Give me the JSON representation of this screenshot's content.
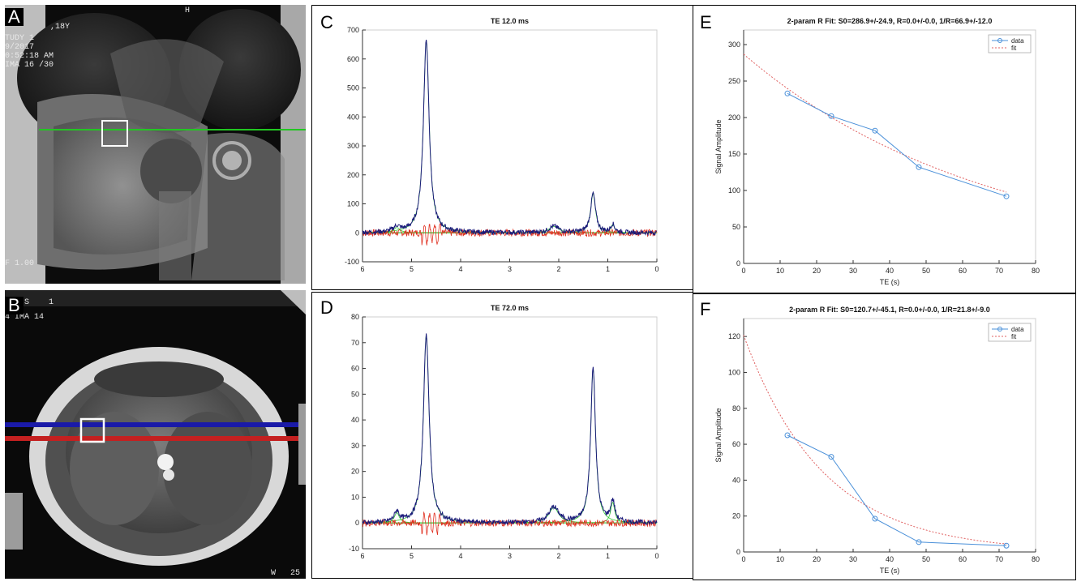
{
  "panels": {
    "A": {
      "label": "A",
      "overlay_lines": [
        ",18Y",
        "TUDY 1",
        "9/2017",
        "0:52:18 AM",
        "IMA 16 /30"
      ],
      "top_marker": "H",
      "bottom_left": "F 1.00",
      "colors": {
        "line": "#22c622",
        "box": "#ffffff"
      }
    },
    "B": {
      "label": "B",
      "overlay_lines": [
        "S    1",
        "4 IMA 14"
      ],
      "bottom_right": "W   25",
      "colors": {
        "blue_line": "#1a1aa8",
        "red_line": "#c42020",
        "box": "#ffffff"
      }
    }
  },
  "chart_data": [
    {
      "id": "C",
      "label": "C",
      "type": "line",
      "title": "TE 12.0 ms",
      "xlabel": "",
      "ylabel": "",
      "xlim": [
        6,
        0
      ],
      "ylim": [
        -100,
        700
      ],
      "xticks": [
        6,
        5,
        4,
        3,
        2,
        1,
        0
      ],
      "yticks": [
        -100,
        0,
        100,
        200,
        300,
        400,
        500,
        600,
        700
      ],
      "peaks": [
        {
          "ppm": 4.7,
          "height": 665,
          "width": 0.07
        },
        {
          "ppm": 1.3,
          "height": 135,
          "width": 0.06
        },
        {
          "ppm": 2.1,
          "height": 22,
          "width": 0.12
        },
        {
          "ppm": 5.3,
          "height": 18,
          "width": 0.08
        },
        {
          "ppm": 0.9,
          "height": 28,
          "width": 0.05
        }
      ],
      "colors": {
        "spectrum": "#1a1a7a",
        "fit_components": "#33cc33",
        "residual": "#e03020",
        "fit_total": "#3a3aff"
      }
    },
    {
      "id": "D",
      "label": "D",
      "type": "line",
      "title": "TE 72.0 ms",
      "xlabel": "",
      "ylabel": "",
      "xlim": [
        6,
        0
      ],
      "ylim": [
        -10,
        80
      ],
      "xticks": [
        6,
        5,
        4,
        3,
        2,
        1,
        0
      ],
      "yticks": [
        -10,
        0,
        10,
        20,
        30,
        40,
        50,
        60,
        70,
        80
      ],
      "peaks": [
        {
          "ppm": 4.7,
          "height": 73,
          "width": 0.07
        },
        {
          "ppm": 1.3,
          "height": 60,
          "width": 0.06
        },
        {
          "ppm": 2.1,
          "height": 6,
          "width": 0.12
        },
        {
          "ppm": 5.3,
          "height": 4,
          "width": 0.06
        },
        {
          "ppm": 0.9,
          "height": 8,
          "width": 0.05
        }
      ],
      "colors": {
        "spectrum": "#1a1a7a",
        "fit_components": "#33cc33",
        "residual": "#e03020",
        "fit_total": "#3a3aff"
      }
    },
    {
      "id": "E",
      "label": "E",
      "type": "scatter",
      "title": "2-param R Fit: S0=286.9+/-24.9, R=0.0+/-0.0, 1/R=66.9+/-12.0",
      "xlabel": "TE (s)",
      "ylabel": "Signal Amplitude",
      "xlim": [
        0,
        80
      ],
      "ylim": [
        0,
        320
      ],
      "xticks": [
        0,
        10,
        20,
        30,
        40,
        50,
        60,
        70,
        80
      ],
      "yticks": [
        0,
        50,
        100,
        150,
        200,
        250,
        300
      ],
      "legend": "top-right",
      "series": [
        {
          "name": "data",
          "x": [
            12,
            24,
            36,
            48,
            72
          ],
          "y": [
            233,
            202,
            182,
            132,
            92
          ],
          "color": "#4a90d9"
        },
        {
          "name": "fit",
          "fit": {
            "S0": 286.9,
            "T": 66.9
          },
          "color": "#e06060"
        }
      ]
    },
    {
      "id": "F",
      "label": "F",
      "type": "scatter",
      "title": "2-param R Fit: S0=120.7+/-45.1, R=0.0+/-0.0, 1/R=21.8+/-9.0",
      "xlabel": "TE (s)",
      "ylabel": "Signal Amplitude",
      "xlim": [
        0,
        80
      ],
      "ylim": [
        0,
        130
      ],
      "xticks": [
        0,
        10,
        20,
        30,
        40,
        50,
        60,
        70,
        80
      ],
      "yticks": [
        0,
        20,
        40,
        60,
        80,
        100,
        120
      ],
      "legend": "top-right",
      "series": [
        {
          "name": "data",
          "x": [
            12,
            24,
            36,
            48,
            72
          ],
          "y": [
            65,
            53,
            18.5,
            5.5,
            3.5
          ],
          "color": "#4a90d9"
        },
        {
          "name": "fit",
          "fit": {
            "S0": 120.7,
            "T": 21.8
          },
          "color": "#e06060"
        }
      ]
    }
  ]
}
